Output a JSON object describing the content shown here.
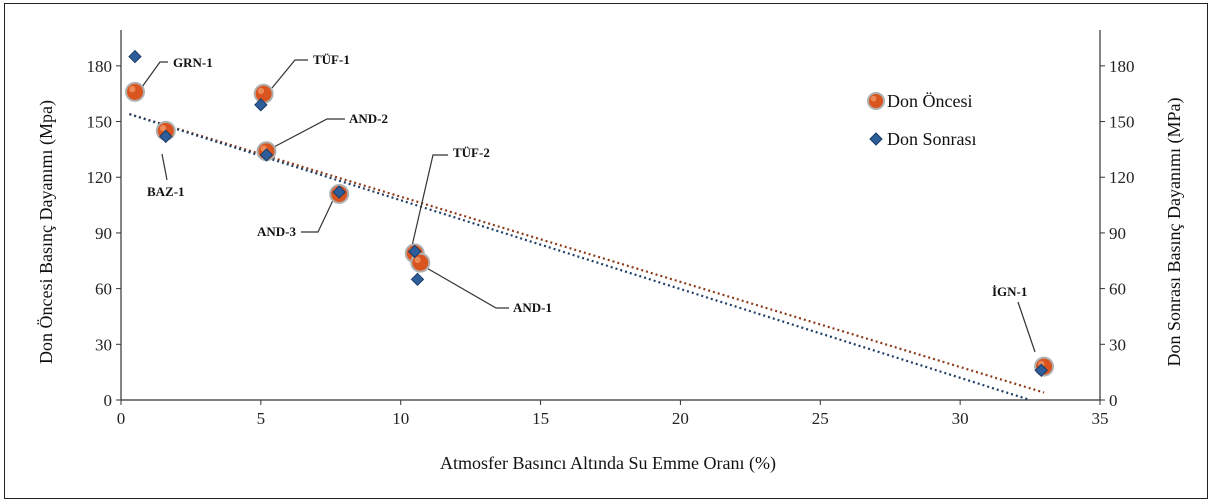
{
  "chart_data": {
    "type": "scatter",
    "title": "",
    "xlabel": "Atmosfer Basıncı Altında Su Emme Oranı (%)",
    "ylabel_left": "Don Öncesi Basınç Dayanımı (Mpa)",
    "ylabel_right": "Don Sonrası Basınç Dayanımı (MPa)",
    "xlim": [
      0,
      35
    ],
    "ylim": [
      0,
      195
    ],
    "x_ticks": [
      "0",
      "5",
      "10",
      "15",
      "20",
      "25",
      "30",
      "35"
    ],
    "y_ticks": [
      "0",
      "30",
      "60",
      "90",
      "120",
      "150",
      "180"
    ],
    "grid": false,
    "legend_position": "top-right",
    "series": [
      {
        "name": "Don Öncesi",
        "color": "#d9541e",
        "marker": "circle",
        "points": [
          {
            "x": 0.5,
            "y": 166
          },
          {
            "x": 1.6,
            "y": 145
          },
          {
            "x": 5.1,
            "y": 165
          },
          {
            "x": 5.2,
            "y": 134
          },
          {
            "x": 7.8,
            "y": 111
          },
          {
            "x": 10.5,
            "y": 79
          },
          {
            "x": 10.7,
            "y": 74
          },
          {
            "x": 33.0,
            "y": 18
          }
        ]
      },
      {
        "name": "Don Sonrası",
        "color": "#2e5e9a",
        "marker": "diamond",
        "points": [
          {
            "x": 0.5,
            "y": 185
          },
          {
            "x": 1.6,
            "y": 142
          },
          {
            "x": 5.0,
            "y": 159
          },
          {
            "x": 5.2,
            "y": 132
          },
          {
            "x": 7.8,
            "y": 112
          },
          {
            "x": 10.5,
            "y": 80
          },
          {
            "x": 10.6,
            "y": 65
          },
          {
            "x": 32.9,
            "y": 16
          }
        ]
      }
    ],
    "trendlines": [
      {
        "series": "Don Öncesi",
        "x": [
          0.3,
          33.0
        ],
        "y": [
          154,
          4
        ]
      },
      {
        "series": "Don Sonrası",
        "x": [
          0.3,
          32.5
        ],
        "y": [
          154,
          0
        ]
      }
    ],
    "annotations": [
      {
        "text": "GRN-1",
        "x": 0.5,
        "y": 166
      },
      {
        "text": "BAZ-1",
        "x": 1.6,
        "y": 145
      },
      {
        "text": "TÜF-1",
        "x": 5.1,
        "y": 165
      },
      {
        "text": "AND-2",
        "x": 5.2,
        "y": 134
      },
      {
        "text": "AND-3",
        "x": 7.8,
        "y": 111
      },
      {
        "text": "TÜF-2",
        "x": 10.5,
        "y": 79
      },
      {
        "text": "AND-1",
        "x": 10.7,
        "y": 74
      },
      {
        "text": "İGN-1",
        "x": 33.0,
        "y": 18
      }
    ]
  }
}
